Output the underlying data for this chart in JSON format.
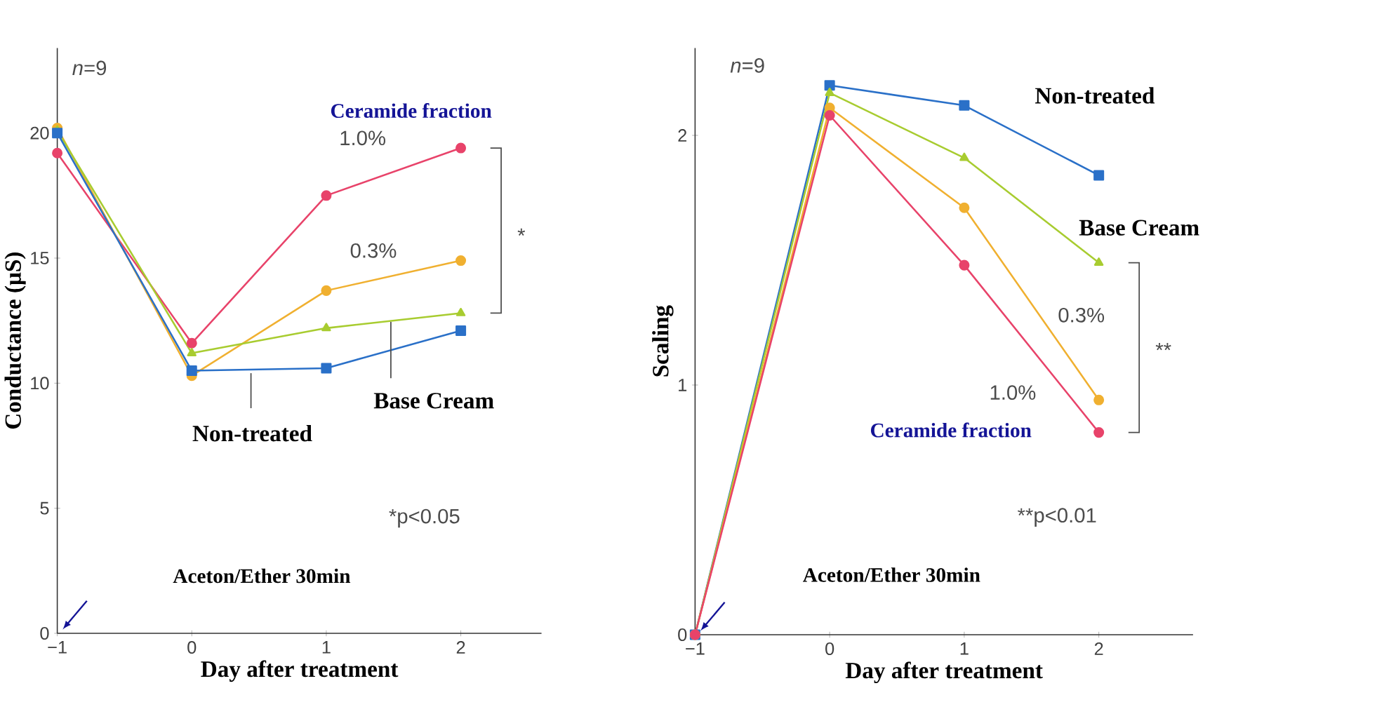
{
  "chart_data": [
    {
      "type": "line",
      "xlabel": "Day after treatment",
      "ylabel": "Conductance (μS)",
      "x": [
        -1,
        0,
        1,
        2
      ],
      "xlim": [
        -1,
        2.6
      ],
      "ylim": [
        0,
        23.4
      ],
      "xticks": [
        {
          "value": -1,
          "label": "−1"
        },
        0,
        1,
        2
      ],
      "yticks": [
        0,
        5,
        10,
        15,
        20
      ],
      "grid": false,
      "legend": false,
      "line_style": "solid",
      "series": [
        {
          "name": "1.0%",
          "color": "#e8436a",
          "marker": "circle",
          "values": [
            19.2,
            11.6,
            17.5,
            19.4
          ]
        },
        {
          "name": "0.3%",
          "color": "#f0b030",
          "marker": "circle",
          "values": [
            20.2,
            10.3,
            13.7,
            14.9
          ]
        },
        {
          "name": "Base Cream",
          "color": "#a8cc30",
          "marker": "triangle",
          "values": [
            20.1,
            11.2,
            12.2,
            12.8
          ]
        },
        {
          "name": "Non-treated",
          "color": "#2a70c8",
          "marker": "square",
          "values": [
            20.0,
            10.5,
            10.6,
            12.1
          ]
        }
      ],
      "annotations": [
        "*n*=9",
        "Ceramide fraction",
        "*",
        "*p<0.05",
        "Aceton/Ether 30min"
      ]
    },
    {
      "type": "line",
      "xlabel": "Day after treatment",
      "ylabel": "Scaling",
      "x": [
        -1,
        0,
        1,
        2
      ],
      "xlim": [
        -1,
        2.7
      ],
      "ylim": [
        0,
        2.35
      ],
      "xticks": [
        {
          "value": -1,
          "label": "−1"
        },
        0,
        1,
        2
      ],
      "yticks": [
        0,
        1,
        2
      ],
      "grid": false,
      "legend": false,
      "line_style": "solid",
      "series": [
        {
          "name": "Non-treated",
          "color": "#2a70c8",
          "marker": "square",
          "values": [
            0,
            2.2,
            2.12,
            1.84
          ]
        },
        {
          "name": "Base Cream",
          "color": "#a8cc30",
          "marker": "triangle",
          "values": [
            0,
            2.17,
            1.91,
            1.49
          ]
        },
        {
          "name": "0.3%",
          "color": "#f0b030",
          "marker": "circle",
          "values": [
            0,
            2.11,
            1.71,
            0.94
          ]
        },
        {
          "name": "1.0%",
          "color": "#e8436a",
          "marker": "circle",
          "values": [
            0,
            2.08,
            1.48,
            0.81
          ]
        }
      ],
      "annotations": [
        "*n*=9",
        "Ceramide fraction",
        "**",
        "**p<0.01",
        "Aceton/Ether 30min"
      ]
    }
  ]
}
